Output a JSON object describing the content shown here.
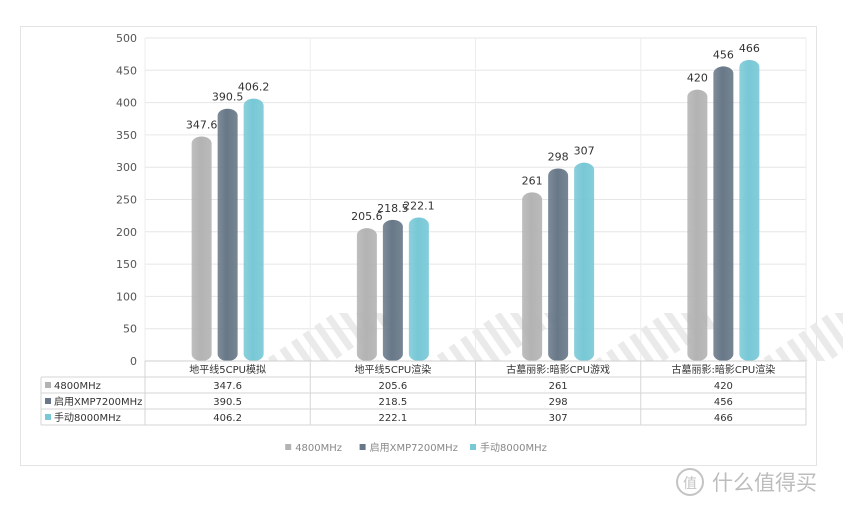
{
  "chart_data": {
    "type": "bar",
    "categories": [
      "地平线5CPU模拟",
      "地平线5CPU渲染",
      "古墓丽影:暗影CPU游戏",
      "古墓丽影:暗影CPU渲染"
    ],
    "series": [
      {
        "name": "4800MHz",
        "values": [
          347.6,
          205.6,
          261,
          420
        ],
        "labels": [
          "347.6",
          "205.6",
          "261",
          "420"
        ],
        "color": "#b3b3b3"
      },
      {
        "name": "启用XMP7200MHz",
        "values": [
          390.5,
          218.5,
          298,
          456
        ],
        "labels": [
          "390.5",
          "218.5",
          "298",
          "456"
        ],
        "color": "#687888"
      },
      {
        "name": "手动8000MHz",
        "values": [
          406.2,
          222.1,
          307,
          466
        ],
        "labels": [
          "406.2",
          "222.1",
          "307",
          "466"
        ],
        "color": "#78c8d6"
      }
    ],
    "ylim": [
      0,
      500
    ],
    "yticks": [
      "0",
      "50",
      "100",
      "150",
      "200",
      "250",
      "300",
      "350",
      "400",
      "450",
      "500"
    ],
    "grid": true,
    "data_table": true,
    "legend_position": "bottom"
  },
  "watermark": {
    "glyph": "值",
    "text": "什么值得买"
  }
}
